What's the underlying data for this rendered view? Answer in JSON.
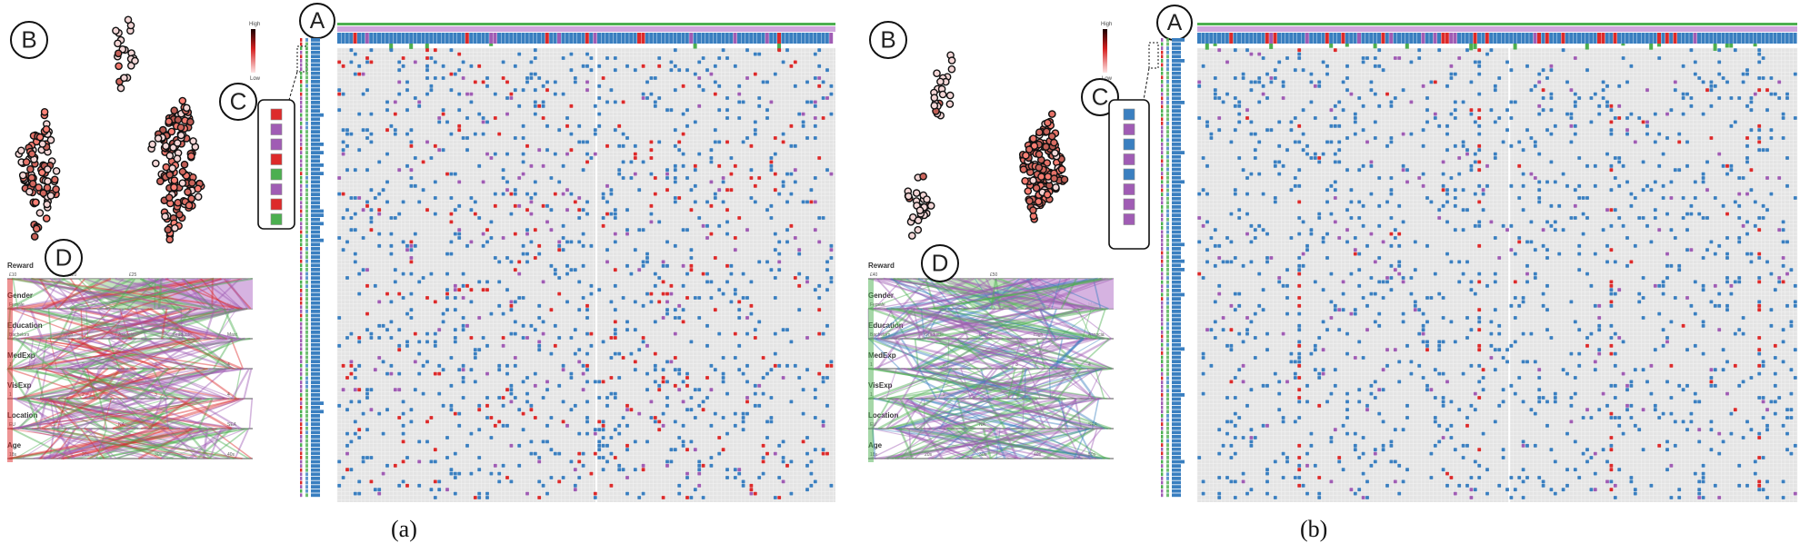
{
  "colors": {
    "blue": "#3a7fc0",
    "purple": "#a05cb4",
    "red": "#dd2a2a",
    "green": "#4caf50",
    "grid_bg": "#e4e4e4",
    "grid_line": "#f4f4f4",
    "lavender": "#cfa6dc"
  },
  "panels": [
    {
      "id": "a",
      "caption": "(a)",
      "markers": {
        "A": "A",
        "B": "B",
        "C": "C",
        "D": "D"
      },
      "legend": {
        "high": "High",
        "low": "Low"
      },
      "detail_colors": [
        "red",
        "purple",
        "purple",
        "red",
        "green",
        "purple",
        "red",
        "green"
      ],
      "axes": [
        {
          "label": "Reward",
          "ticks": [
            "£10",
            "£20",
            "£25"
          ]
        },
        {
          "label": "Gender",
          "ticks": [
            "Female",
            "Male"
          ]
        },
        {
          "label": "Education",
          "ticks": [
            "Bachelors",
            "High",
            "Associa",
            "Graduate",
            "Mast"
          ]
        },
        {
          "label": "MedExp",
          "ticks": [
            "1",
            "2",
            "3",
            "4"
          ]
        },
        {
          "label": "VisExp",
          "ticks": [
            "1",
            "2",
            "3",
            "4"
          ]
        },
        {
          "label": "Location",
          "ticks": [
            "EU",
            "NA",
            "SEA"
          ]
        },
        {
          "label": "Age",
          "ticks": [
            "18s",
            "20s",
            "30s",
            "40s"
          ]
        }
      ]
    },
    {
      "id": "b",
      "caption": "(b)",
      "markers": {
        "A": "A",
        "B": "B",
        "C": "C",
        "D": "D"
      },
      "legend": {
        "high": "High",
        "low": "Low"
      },
      "detail_colors": [
        "blue",
        "purple",
        "blue",
        "purple",
        "blue",
        "purple",
        "purple",
        "purple"
      ],
      "axes": [
        {
          "label": "Reward",
          "ticks": [
            "£40",
            "£45",
            "£50"
          ]
        },
        {
          "label": "Gender",
          "ticks": [
            "Female",
            "Male"
          ]
        },
        {
          "label": "Education",
          "ticks": [
            "Bachelors",
            "Graduate",
            "Doctor",
            "High",
            "Associa"
          ]
        },
        {
          "label": "MedExp",
          "ticks": [
            "1",
            "2",
            "3",
            "4"
          ]
        },
        {
          "label": "VisExp",
          "ticks": [
            "1",
            "2",
            "3",
            "4"
          ]
        },
        {
          "label": "Location",
          "ticks": [
            "EU",
            "NA",
            "SEA"
          ]
        },
        {
          "label": "Age",
          "ticks": [
            "18s",
            "20s",
            "30s",
            "40s",
            "50s"
          ]
        }
      ]
    }
  ]
}
